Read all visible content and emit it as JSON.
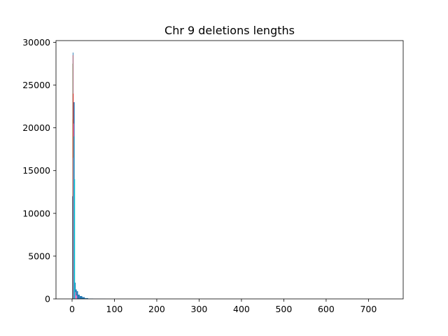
{
  "chart_data": {
    "type": "bar",
    "title": "Chr 9 deletions lengths",
    "xlabel": "",
    "ylabel": "",
    "xlim": [
      -38,
      782
    ],
    "ylim": [
      0,
      30200
    ],
    "grid": false,
    "legend": "none",
    "x_ticks": [
      0,
      100,
      200,
      300,
      400,
      500,
      600,
      700
    ],
    "y_ticks": [
      0,
      5000,
      10000,
      15000,
      20000,
      25000,
      30000
    ],
    "series": [
      {
        "color": "#1f77b4",
        "bars": [
          {
            "x0": 0,
            "x1": 1.5,
            "value": 12000
          },
          {
            "x0": 1.5,
            "x1": 3,
            "value": 28800
          },
          {
            "x0": 3,
            "x1": 4.5,
            "value": 23000
          },
          {
            "x0": 4.5,
            "x1": 6,
            "value": 23000
          },
          {
            "x0": 6,
            "x1": 8.5,
            "value": 1900
          },
          {
            "x0": 8.5,
            "x1": 11,
            "value": 1100
          },
          {
            "x0": 11,
            "x1": 14,
            "value": 900
          },
          {
            "x0": 14,
            "x1": 18,
            "value": 500
          },
          {
            "x0": 18,
            "x1": 24,
            "value": 330
          },
          {
            "x0": 24,
            "x1": 30,
            "value": 200
          },
          {
            "x0": 30,
            "x1": 38,
            "value": 90
          },
          {
            "x0": 38,
            "x1": 50,
            "value": 30
          },
          {
            "x0": 50,
            "x1": 80,
            "value": 10
          }
        ]
      },
      {
        "color": "#ff7f0e",
        "bars": [
          {
            "x0": 1,
            "x1": 2,
            "value": 21000
          },
          {
            "x0": 2,
            "x1": 3,
            "value": 20000
          },
          {
            "x0": 3,
            "x1": 4,
            "value": 16000
          }
        ]
      },
      {
        "color": "#2ca02c",
        "bars": [
          {
            "x0": 1.2,
            "x1": 2.2,
            "value": 27500
          },
          {
            "x0": 2.2,
            "x1": 3.2,
            "value": 22000
          }
        ]
      },
      {
        "color": "#d62728",
        "bars": [
          {
            "x0": 1.5,
            "x1": 2.5,
            "value": 28500
          },
          {
            "x0": 2.5,
            "x1": 3.5,
            "value": 24000
          }
        ]
      },
      {
        "color": "#9467bd",
        "bars": [
          {
            "x0": 2,
            "x1": 3,
            "value": 16500
          },
          {
            "x0": 3,
            "x1": 4,
            "value": 14000
          }
        ]
      },
      {
        "color": "#e377c2",
        "bars": [
          {
            "x0": 3,
            "x1": 4.5,
            "value": 20500
          },
          {
            "x0": 4.5,
            "x1": 6.5,
            "value": 1500
          },
          {
            "x0": 6.5,
            "x1": 9,
            "value": 800
          },
          {
            "x0": 9,
            "x1": 12,
            "value": 400
          }
        ]
      },
      {
        "color": "#17becf",
        "bars": [
          {
            "x0": 3.5,
            "x1": 5,
            "value": 19000
          },
          {
            "x0": 5,
            "x1": 7,
            "value": 14000
          }
        ]
      }
    ]
  }
}
